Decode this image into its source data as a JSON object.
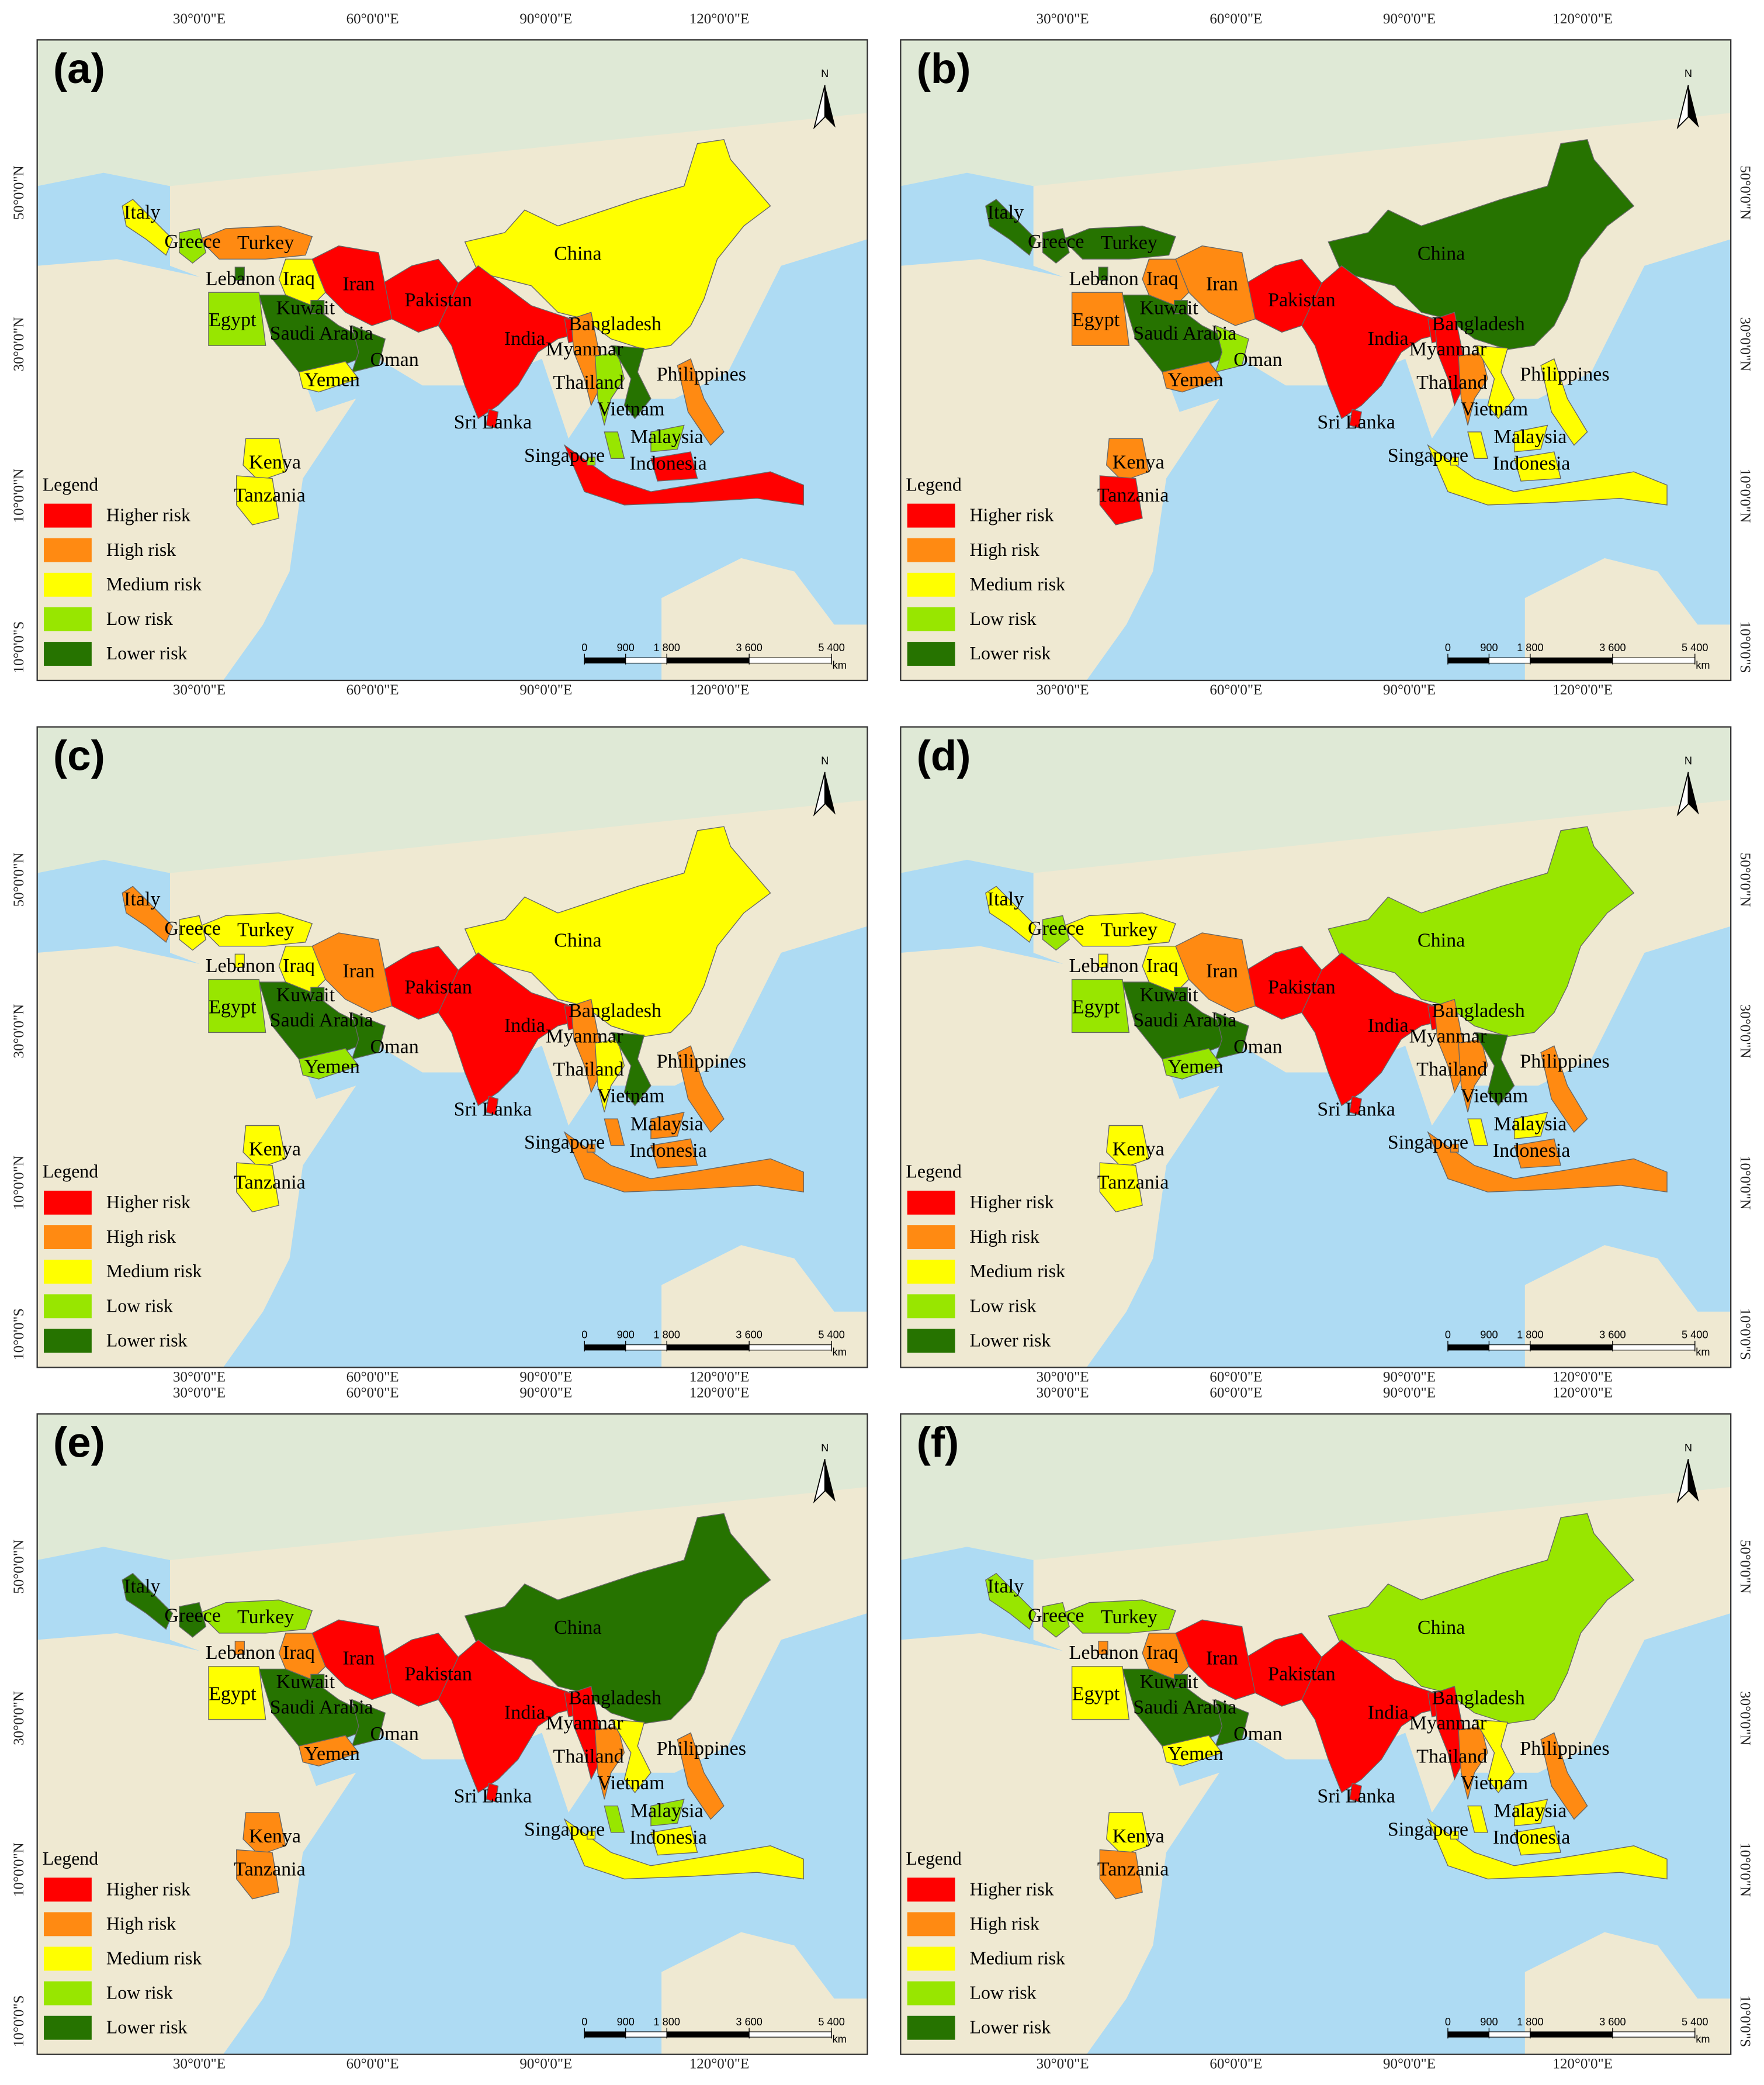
{
  "legend": {
    "title": "Legend",
    "items": [
      {
        "label": "Higher risk",
        "color": "#ff0000"
      },
      {
        "label": "High risk",
        "color": "#ff8a12"
      },
      {
        "label": "Medium risk",
        "color": "#ffff00"
      },
      {
        "label": "Low risk",
        "color": "#98e600"
      },
      {
        "label": "Lower risk",
        "color": "#267300"
      }
    ]
  },
  "north": "N",
  "xticks": [
    {
      "value": 30,
      "label": "30°0'0\"E"
    },
    {
      "value": 60,
      "label": "60°0'0\"E"
    },
    {
      "value": 90,
      "label": "90°0'0\"E"
    },
    {
      "value": 120,
      "label": "120°0'0\"E"
    }
  ],
  "yticks": [
    {
      "value": 50,
      "label": "50°0'0\"N"
    },
    {
      "value": 30,
      "label": "30°0'0\"N"
    },
    {
      "value": 10,
      "label": "10°0'0\"N"
    },
    {
      "value": -10,
      "label": "10°0'0\"S"
    }
  ],
  "scale": {
    "ticks": [
      0,
      900,
      {
        "value": 1800,
        "label": "1 800"
      },
      {
        "value": 3600,
        "label": "3 600"
      },
      {
        "value": 5400,
        "label": "5 400"
      }
    ],
    "unit": "km"
  },
  "panels": [
    {
      "label": "(a)",
      "countries": [
        {
          "name": "Italy",
          "risk": "Medium risk"
        },
        {
          "name": "Greece",
          "risk": "Low risk"
        },
        {
          "name": "Turkey",
          "risk": "High risk"
        },
        {
          "name": "Lebanon",
          "risk": "Lower risk"
        },
        {
          "name": "Iraq",
          "risk": "Medium risk"
        },
        {
          "name": "Iran",
          "risk": "Higher risk"
        },
        {
          "name": "Kuwait",
          "risk": "Lower risk"
        },
        {
          "name": "Egypt",
          "risk": "Low risk"
        },
        {
          "name": "Saudi Arabia",
          "risk": "Lower risk"
        },
        {
          "name": "Oman",
          "risk": "Lower risk"
        },
        {
          "name": "Yemen",
          "risk": "Medium risk"
        },
        {
          "name": "Pakistan",
          "risk": "Higher risk"
        },
        {
          "name": "India",
          "risk": "Higher risk"
        },
        {
          "name": "Bangladesh",
          "risk": "Higher risk"
        },
        {
          "name": "Myanmar",
          "risk": "High risk"
        },
        {
          "name": "Thailand",
          "risk": "Low risk"
        },
        {
          "name": "Vietnam",
          "risk": "Lower risk"
        },
        {
          "name": "Philippines",
          "risk": "High risk"
        },
        {
          "name": "Malaysia",
          "risk": "Low risk"
        },
        {
          "name": "Singapore",
          "risk": "Low risk"
        },
        {
          "name": "Indonesia",
          "risk": "Higher risk"
        },
        {
          "name": "Sri Lanka",
          "risk": "Higher risk"
        },
        {
          "name": "China",
          "risk": "Medium risk"
        },
        {
          "name": "Kenya",
          "risk": "Medium risk"
        },
        {
          "name": "Tanzania",
          "risk": "Medium risk"
        }
      ]
    },
    {
      "label": "(b)",
      "countries": [
        {
          "name": "Italy",
          "risk": "Lower risk"
        },
        {
          "name": "Greece",
          "risk": "Lower risk"
        },
        {
          "name": "Turkey",
          "risk": "Lower risk"
        },
        {
          "name": "Lebanon",
          "risk": "Lower risk"
        },
        {
          "name": "Iraq",
          "risk": "High risk"
        },
        {
          "name": "Iran",
          "risk": "High risk"
        },
        {
          "name": "Kuwait",
          "risk": "Lower risk"
        },
        {
          "name": "Egypt",
          "risk": "High risk"
        },
        {
          "name": "Saudi Arabia",
          "risk": "Lower risk"
        },
        {
          "name": "Oman",
          "risk": "Low risk"
        },
        {
          "name": "Yemen",
          "risk": "High risk"
        },
        {
          "name": "Pakistan",
          "risk": "Higher risk"
        },
        {
          "name": "India",
          "risk": "Higher risk"
        },
        {
          "name": "Bangladesh",
          "risk": "Higher risk"
        },
        {
          "name": "Myanmar",
          "risk": "Higher risk"
        },
        {
          "name": "Thailand",
          "risk": "High risk"
        },
        {
          "name": "Vietnam",
          "risk": "Medium risk"
        },
        {
          "name": "Philippines",
          "risk": "Medium risk"
        },
        {
          "name": "Malaysia",
          "risk": "Medium risk"
        },
        {
          "name": "Singapore",
          "risk": "Medium risk"
        },
        {
          "name": "Indonesia",
          "risk": "Medium risk"
        },
        {
          "name": "Sri Lanka",
          "risk": "Higher risk"
        },
        {
          "name": "China",
          "risk": "Lower risk"
        },
        {
          "name": "Kenya",
          "risk": "High risk"
        },
        {
          "name": "Tanzania",
          "risk": "Higher risk"
        }
      ]
    },
    {
      "label": "(c)",
      "countries": [
        {
          "name": "Italy",
          "risk": "High risk"
        },
        {
          "name": "Greece",
          "risk": "Medium risk"
        },
        {
          "name": "Turkey",
          "risk": "Medium risk"
        },
        {
          "name": "Lebanon",
          "risk": "Medium risk"
        },
        {
          "name": "Iraq",
          "risk": "Medium risk"
        },
        {
          "name": "Iran",
          "risk": "High risk"
        },
        {
          "name": "Kuwait",
          "risk": "Lower risk"
        },
        {
          "name": "Egypt",
          "risk": "Low risk"
        },
        {
          "name": "Saudi Arabia",
          "risk": "Lower risk"
        },
        {
          "name": "Oman",
          "risk": "Lower risk"
        },
        {
          "name": "Yemen",
          "risk": "Low risk"
        },
        {
          "name": "Pakistan",
          "risk": "Higher risk"
        },
        {
          "name": "India",
          "risk": "Higher risk"
        },
        {
          "name": "Bangladesh",
          "risk": "Higher risk"
        },
        {
          "name": "Myanmar",
          "risk": "High risk"
        },
        {
          "name": "Thailand",
          "risk": "Medium risk"
        },
        {
          "name": "Vietnam",
          "risk": "Lower risk"
        },
        {
          "name": "Philippines",
          "risk": "High risk"
        },
        {
          "name": "Malaysia",
          "risk": "High risk"
        },
        {
          "name": "Singapore",
          "risk": "High risk"
        },
        {
          "name": "Indonesia",
          "risk": "High risk"
        },
        {
          "name": "Sri Lanka",
          "risk": "Higher risk"
        },
        {
          "name": "China",
          "risk": "Medium risk"
        },
        {
          "name": "Kenya",
          "risk": "Medium risk"
        },
        {
          "name": "Tanzania",
          "risk": "Medium risk"
        }
      ]
    },
    {
      "label": "(d)",
      "countries": [
        {
          "name": "Italy",
          "risk": "Medium risk"
        },
        {
          "name": "Greece",
          "risk": "Low risk"
        },
        {
          "name": "Turkey",
          "risk": "Medium risk"
        },
        {
          "name": "Lebanon",
          "risk": "Medium risk"
        },
        {
          "name": "Iraq",
          "risk": "Medium risk"
        },
        {
          "name": "Iran",
          "risk": "High risk"
        },
        {
          "name": "Kuwait",
          "risk": "Lower risk"
        },
        {
          "name": "Egypt",
          "risk": "Low risk"
        },
        {
          "name": "Saudi Arabia",
          "risk": "Lower risk"
        },
        {
          "name": "Oman",
          "risk": "Lower risk"
        },
        {
          "name": "Yemen",
          "risk": "Low risk"
        },
        {
          "name": "Pakistan",
          "risk": "Higher risk"
        },
        {
          "name": "India",
          "risk": "Higher risk"
        },
        {
          "name": "Bangladesh",
          "risk": "Higher risk"
        },
        {
          "name": "Myanmar",
          "risk": "High risk"
        },
        {
          "name": "Thailand",
          "risk": "High risk"
        },
        {
          "name": "Vietnam",
          "risk": "Lower risk"
        },
        {
          "name": "Philippines",
          "risk": "High risk"
        },
        {
          "name": "Malaysia",
          "risk": "Medium risk"
        },
        {
          "name": "Singapore",
          "risk": "High risk"
        },
        {
          "name": "Indonesia",
          "risk": "High risk"
        },
        {
          "name": "Sri Lanka",
          "risk": "Higher risk"
        },
        {
          "name": "China",
          "risk": "Low risk"
        },
        {
          "name": "Kenya",
          "risk": "Medium risk"
        },
        {
          "name": "Tanzania",
          "risk": "Medium risk"
        }
      ]
    },
    {
      "label": "(e)",
      "countries": [
        {
          "name": "Italy",
          "risk": "Lower risk"
        },
        {
          "name": "Greece",
          "risk": "Lower risk"
        },
        {
          "name": "Turkey",
          "risk": "Low risk"
        },
        {
          "name": "Lebanon",
          "risk": "High risk"
        },
        {
          "name": "Iraq",
          "risk": "High risk"
        },
        {
          "name": "Iran",
          "risk": "Higher risk"
        },
        {
          "name": "Kuwait",
          "risk": "Lower risk"
        },
        {
          "name": "Egypt",
          "risk": "Medium risk"
        },
        {
          "name": "Saudi Arabia",
          "risk": "Lower risk"
        },
        {
          "name": "Oman",
          "risk": "Lower risk"
        },
        {
          "name": "Yemen",
          "risk": "High risk"
        },
        {
          "name": "Pakistan",
          "risk": "Higher risk"
        },
        {
          "name": "India",
          "risk": "Higher risk"
        },
        {
          "name": "Bangladesh",
          "risk": "Higher risk"
        },
        {
          "name": "Myanmar",
          "risk": "Higher risk"
        },
        {
          "name": "Thailand",
          "risk": "High risk"
        },
        {
          "name": "Vietnam",
          "risk": "Medium risk"
        },
        {
          "name": "Philippines",
          "risk": "High risk"
        },
        {
          "name": "Malaysia",
          "risk": "Low risk"
        },
        {
          "name": "Singapore",
          "risk": "Medium risk"
        },
        {
          "name": "Indonesia",
          "risk": "Medium risk"
        },
        {
          "name": "Sri Lanka",
          "risk": "Higher risk"
        },
        {
          "name": "China",
          "risk": "Lower risk"
        },
        {
          "name": "Kenya",
          "risk": "High risk"
        },
        {
          "name": "Tanzania",
          "risk": "High risk"
        }
      ]
    },
    {
      "label": "(f)",
      "countries": [
        {
          "name": "Italy",
          "risk": "Low risk"
        },
        {
          "name": "Greece",
          "risk": "Low risk"
        },
        {
          "name": "Turkey",
          "risk": "Low risk"
        },
        {
          "name": "Lebanon",
          "risk": "High risk"
        },
        {
          "name": "Iraq",
          "risk": "High risk"
        },
        {
          "name": "Iran",
          "risk": "Higher risk"
        },
        {
          "name": "Kuwait",
          "risk": "Lower risk"
        },
        {
          "name": "Egypt",
          "risk": "Medium risk"
        },
        {
          "name": "Saudi Arabia",
          "risk": "Lower risk"
        },
        {
          "name": "Oman",
          "risk": "Lower risk"
        },
        {
          "name": "Yemen",
          "risk": "Medium risk"
        },
        {
          "name": "Pakistan",
          "risk": "Higher risk"
        },
        {
          "name": "India",
          "risk": "Higher risk"
        },
        {
          "name": "Bangladesh",
          "risk": "Higher risk"
        },
        {
          "name": "Myanmar",
          "risk": "Higher risk"
        },
        {
          "name": "Thailand",
          "risk": "High risk"
        },
        {
          "name": "Vietnam",
          "risk": "Medium risk"
        },
        {
          "name": "Philippines",
          "risk": "High risk"
        },
        {
          "name": "Malaysia",
          "risk": "Medium risk"
        },
        {
          "name": "Singapore",
          "risk": "Medium risk"
        },
        {
          "name": "Indonesia",
          "risk": "Medium risk"
        },
        {
          "name": "Sri Lanka",
          "risk": "Higher risk"
        },
        {
          "name": "China",
          "risk": "Low risk"
        },
        {
          "name": "Kenya",
          "risk": "Medium risk"
        },
        {
          "name": "Tanzania",
          "risk": "High risk"
        }
      ]
    }
  ]
}
